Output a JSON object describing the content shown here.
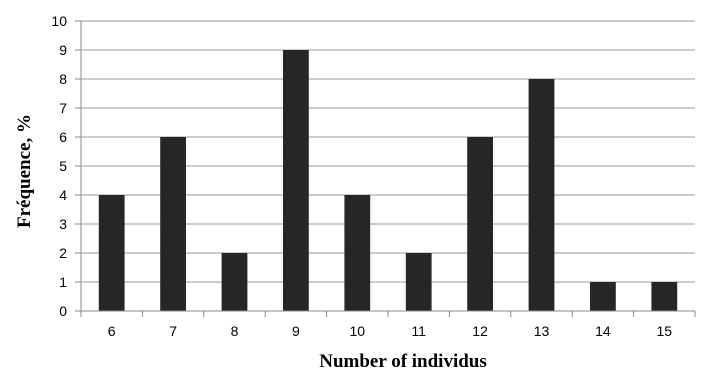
{
  "chart_data": {
    "type": "bar",
    "categories": [
      "6",
      "7",
      "8",
      "9",
      "10",
      "11",
      "12",
      "13",
      "14",
      "15"
    ],
    "values": [
      4,
      6,
      2,
      9,
      4,
      2,
      6,
      8,
      1,
      1
    ],
    "xlabel": "Number of individus",
    "ylabel": "Fréquence, %",
    "ylim": [
      0,
      10
    ],
    "yticks": [
      "0",
      "1",
      "2",
      "3",
      "4",
      "5",
      "6",
      "7",
      "8",
      "9",
      "10"
    ],
    "grid": true,
    "bar_color": "#262626",
    "grid_color": "#9a9a9a"
  }
}
